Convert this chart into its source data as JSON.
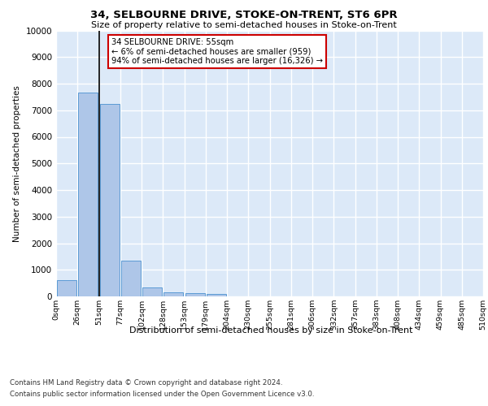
{
  "title_line1": "34, SELBOURNE DRIVE, STOKE-ON-TRENT, ST6 6PR",
  "title_line2": "Size of property relative to semi-detached houses in Stoke-on-Trent",
  "xlabel": "Distribution of semi-detached houses by size in Stoke-on-Trent",
  "ylabel": "Number of semi-detached properties",
  "bin_labels": [
    "0sqm",
    "26sqm",
    "51sqm",
    "77sqm",
    "102sqm",
    "128sqm",
    "153sqm",
    "179sqm",
    "204sqm",
    "230sqm",
    "255sqm",
    "281sqm",
    "306sqm",
    "332sqm",
    "357sqm",
    "383sqm",
    "408sqm",
    "434sqm",
    "459sqm",
    "485sqm",
    "510sqm"
  ],
  "bar_values": [
    600,
    7650,
    7250,
    1350,
    350,
    150,
    110,
    95,
    0,
    0,
    0,
    0,
    0,
    0,
    0,
    0,
    0,
    0,
    0,
    0
  ],
  "bar_color": "#aec6e8",
  "bar_edge_color": "#5b9bd5",
  "vline_x": 1.5,
  "vline_color": "#000000",
  "annotation_text": "34 SELBOURNE DRIVE: 55sqm\n← 6% of semi-detached houses are smaller (959)\n94% of semi-detached houses are larger (16,326) →",
  "annotation_box_color": "#ffffff",
  "annotation_box_edge_color": "#cc0000",
  "ylim": [
    0,
    10000
  ],
  "yticks": [
    0,
    1000,
    2000,
    3000,
    4000,
    5000,
    6000,
    7000,
    8000,
    9000,
    10000
  ],
  "background_color": "#dce9f8",
  "grid_color": "#ffffff",
  "footnote1": "Contains HM Land Registry data © Crown copyright and database right 2024.",
  "footnote2": "Contains public sector information licensed under the Open Government Licence v3.0."
}
